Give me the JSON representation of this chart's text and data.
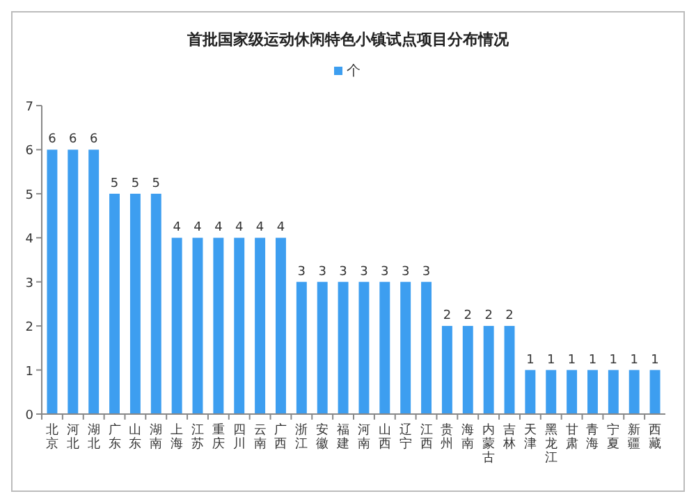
{
  "chart_data": {
    "type": "bar",
    "title": "首批国家级运动休闲特色小镇试点项目分布情况",
    "categories": [
      "北京",
      "河北",
      "湖北",
      "广东",
      "山东",
      "湖南",
      "上海",
      "江苏",
      "重庆",
      "四川",
      "云南",
      "广西",
      "浙江",
      "安徽",
      "福建",
      "河南",
      "山西",
      "辽宁",
      "江西",
      "贵州",
      "海南",
      "内蒙古",
      "吉林",
      "天津",
      "黑龙江",
      "甘肃",
      "青海",
      "宁夏",
      "新疆",
      "西藏"
    ],
    "series": [
      {
        "name": "个",
        "color": "#3d9ef0",
        "values": [
          6,
          6,
          6,
          5,
          5,
          5,
          4,
          4,
          4,
          4,
          4,
          4,
          3,
          3,
          3,
          3,
          3,
          3,
          3,
          2,
          2,
          2,
          2,
          1,
          1,
          1,
          1,
          1,
          1,
          1
        ]
      }
    ],
    "ylim": [
      0,
      7
    ],
    "yticks": [
      0,
      1,
      2,
      3,
      4,
      5,
      6,
      7
    ],
    "data_labels": true,
    "legend": "top",
    "grid": false
  }
}
